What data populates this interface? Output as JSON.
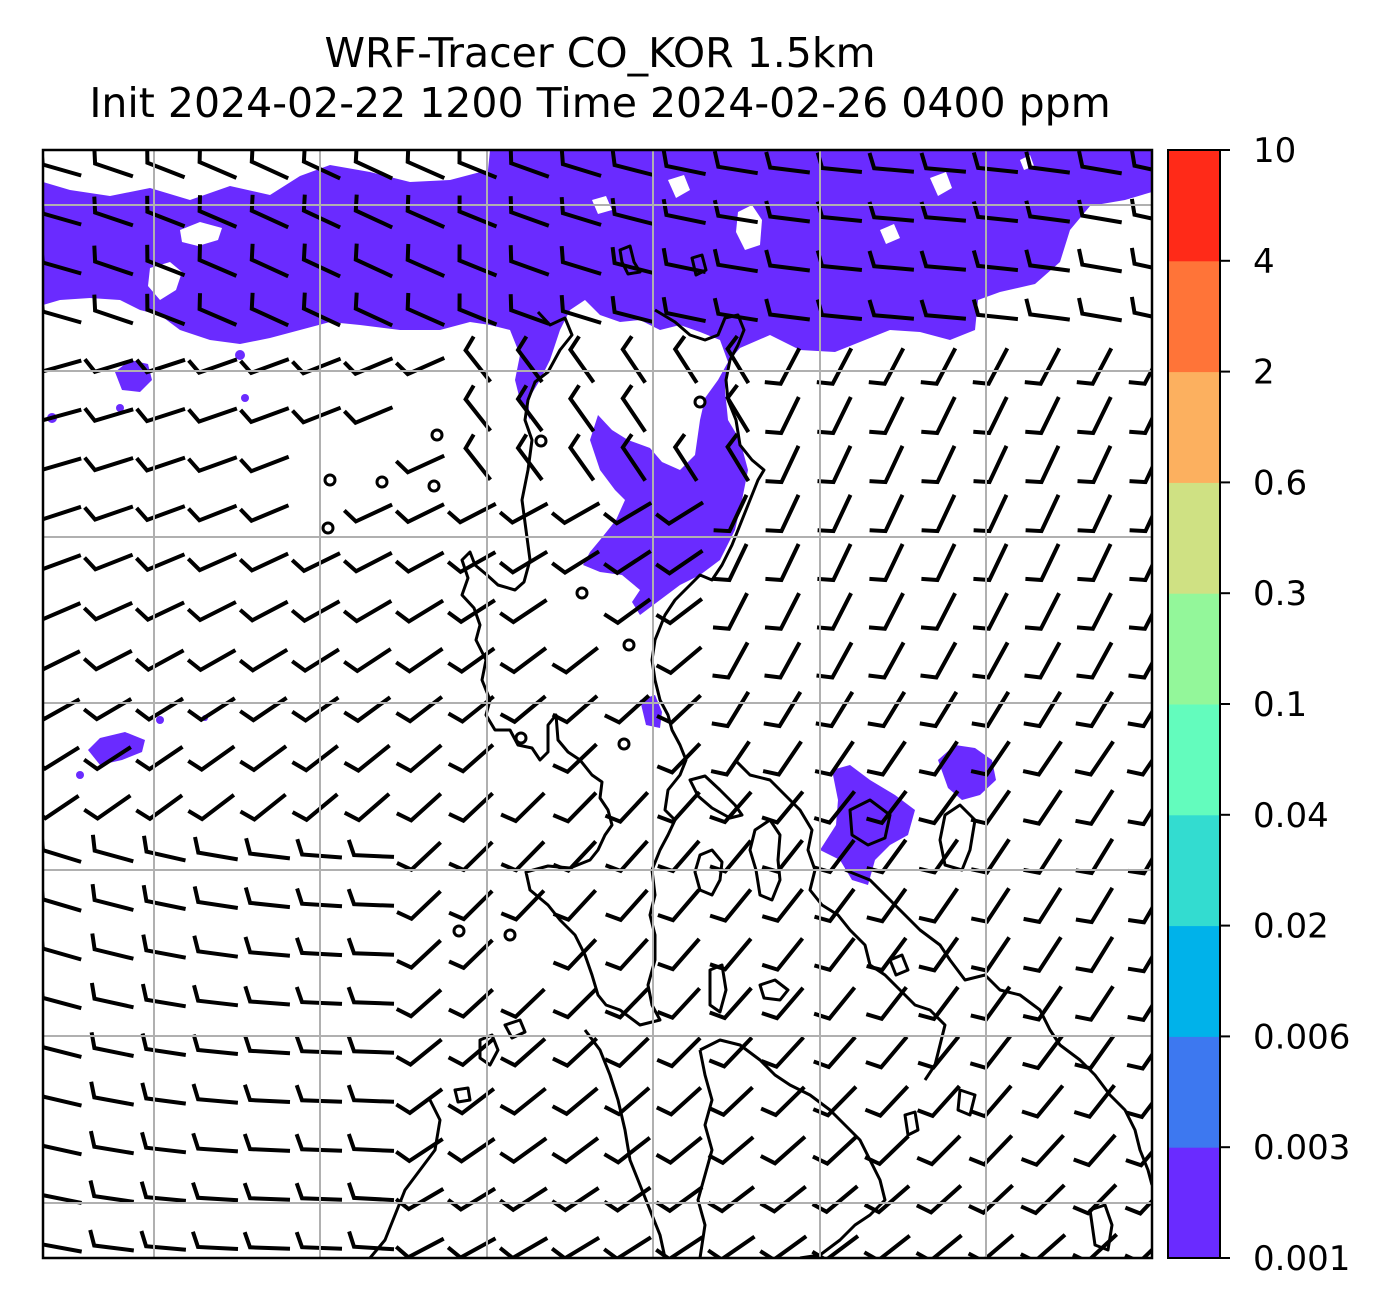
{
  "title": {
    "line1": "WRF-Tracer CO_KOR 1.5km",
    "line2": "Init 2024-02-22 1200 Time 2024-02-26 0400 ppm"
  },
  "colorbar": {
    "levels": [
      "0.001",
      "0.003",
      "0.006",
      "0.02",
      "0.04",
      "0.1",
      "0.3",
      "0.6",
      "2",
      "4",
      "10"
    ],
    "colors": [
      "#6a2bff",
      "#3d78f0",
      "#00b2ea",
      "#33dcd0",
      "#63fcbd",
      "#93f79a",
      "#cfe183",
      "#fcb05f",
      "#ff7438",
      "#ff2a18"
    ]
  },
  "map": {
    "tracer_fill_color": "#6a2bff",
    "coastline_color": "#000000",
    "gridline_color": "#b0b0b0",
    "wind_barb_color": "#000000"
  }
}
